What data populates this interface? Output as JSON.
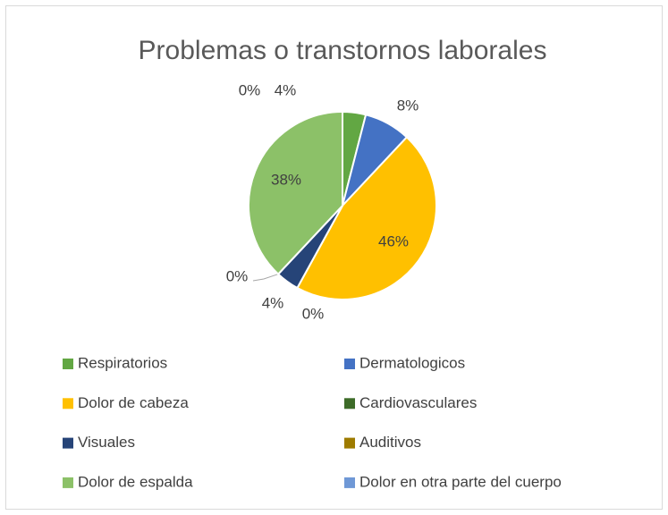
{
  "chart_data": {
    "type": "pie",
    "title": "Problemas o transtornos laborales",
    "categories": [
      "Respiratorios",
      "Dermatologicos",
      "Dolor de cabeza",
      "Cardiovasculares",
      "Visuales",
      "Auditivos",
      "Dolor de espalda",
      "Dolor en otra parte del cuerpo"
    ],
    "values": [
      4,
      8,
      46,
      0,
      4,
      0,
      38,
      0
    ],
    "value_labels": [
      "4%",
      "8%",
      "46%",
      "0%",
      "4%",
      "0%",
      "38%",
      "0%"
    ],
    "colors": [
      "#62a743",
      "#4472c4",
      "#ffc000",
      "#3d6b28",
      "#264478",
      "#9e7b00",
      "#8cc168",
      "#6f98d6"
    ],
    "legend": "bottom"
  }
}
